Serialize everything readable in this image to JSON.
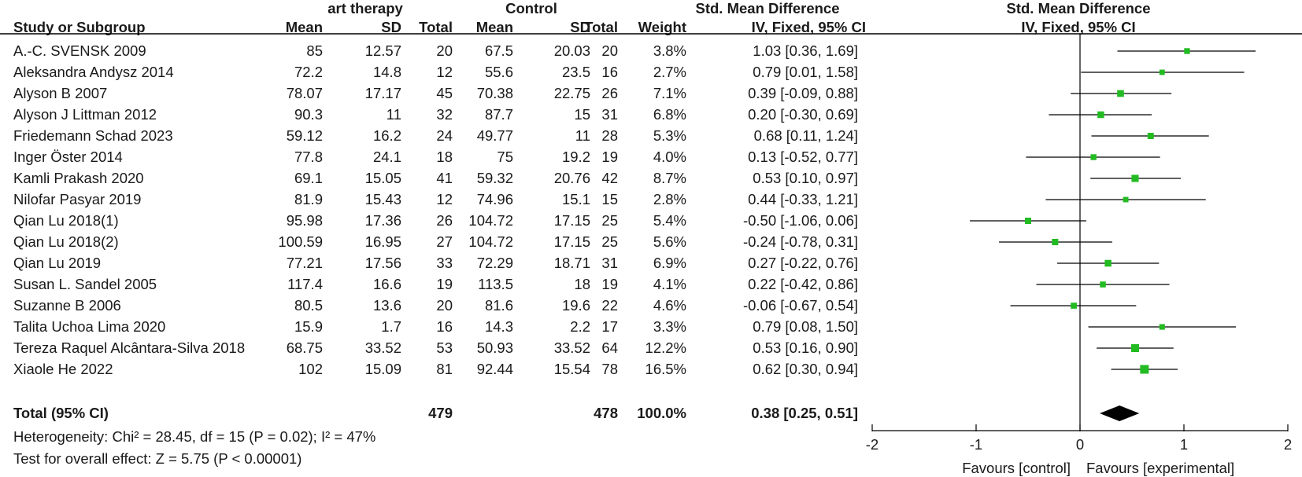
{
  "header": {
    "group1": "art therapy",
    "group2": "Control",
    "effect_header_1": "Std. Mean Difference",
    "effect_header_2": "IV, Fixed, 95% CI",
    "plot_header_1": "Std. Mean Difference",
    "plot_header_2": "IV, Fixed, 95% CI",
    "study_col": "Study or Subgroup",
    "mean1": "Mean",
    "sd1": "SD",
    "total1": "Total",
    "mean2": "Mean",
    "sd2": "SD",
    "total2": "Total",
    "weight": "Weight"
  },
  "studies": [
    {
      "name": "A.-C. SVENSK 2009",
      "m1": "85",
      "sd1": "12.57",
      "n1": "20",
      "m2": "67.5",
      "sd2": "20.03",
      "n2": "20",
      "w": "3.8%",
      "ci": "1.03 [0.36, 1.69]"
    },
    {
      "name": "Aleksandra Andysz 2014",
      "m1": "72.2",
      "sd1": "14.8",
      "n1": "12",
      "m2": "55.6",
      "sd2": "23.5",
      "n2": "16",
      "w": "2.7%",
      "ci": "0.79 [0.01, 1.58]"
    },
    {
      "name": "Alyson B 2007",
      "m1": "78.07",
      "sd1": "17.17",
      "n1": "45",
      "m2": "70.38",
      "sd2": "22.75",
      "n2": "26",
      "w": "7.1%",
      "ci": "0.39 [-0.09, 0.88]"
    },
    {
      "name": "Alyson J Littman 2012",
      "m1": "90.3",
      "sd1": "11",
      "n1": "32",
      "m2": "87.7",
      "sd2": "15",
      "n2": "31",
      "w": "6.8%",
      "ci": "0.20 [-0.30, 0.69]"
    },
    {
      "name": "Friedemann Schad 2023",
      "m1": "59.12",
      "sd1": "16.2",
      "n1": "24",
      "m2": "49.77",
      "sd2": "11",
      "n2": "28",
      "w": "5.3%",
      "ci": "0.68 [0.11, 1.24]"
    },
    {
      "name": "Inger Öster 2014",
      "m1": "77.8",
      "sd1": "24.1",
      "n1": "18",
      "m2": "75",
      "sd2": "19.2",
      "n2": "19",
      "w": "4.0%",
      "ci": "0.13 [-0.52, 0.77]"
    },
    {
      "name": "Kamli Prakash 2020",
      "m1": "69.1",
      "sd1": "15.05",
      "n1": "41",
      "m2": "59.32",
      "sd2": "20.76",
      "n2": "42",
      "w": "8.7%",
      "ci": "0.53 [0.10, 0.97]"
    },
    {
      "name": "Nilofar Pasyar 2019",
      "m1": "81.9",
      "sd1": "15.43",
      "n1": "12",
      "m2": "74.96",
      "sd2": "15.1",
      "n2": "15",
      "w": "2.8%",
      "ci": "0.44 [-0.33, 1.21]"
    },
    {
      "name": "Qian Lu 2018(1)",
      "m1": "95.98",
      "sd1": "17.36",
      "n1": "26",
      "m2": "104.72",
      "sd2": "17.15",
      "n2": "25",
      "w": "5.4%",
      "ci": "-0.50 [-1.06, 0.06]"
    },
    {
      "name": "Qian Lu 2018(2)",
      "m1": "100.59",
      "sd1": "16.95",
      "n1": "27",
      "m2": "104.72",
      "sd2": "17.15",
      "n2": "25",
      "w": "5.6%",
      "ci": "-0.24 [-0.78, 0.31]"
    },
    {
      "name": "Qian Lu 2019",
      "m1": "77.21",
      "sd1": "17.56",
      "n1": "33",
      "m2": "72.29",
      "sd2": "18.71",
      "n2": "31",
      "w": "6.9%",
      "ci": "0.27 [-0.22, 0.76]"
    },
    {
      "name": "Susan L. Sandel 2005",
      "m1": "117.4",
      "sd1": "16.6",
      "n1": "19",
      "m2": "113.5",
      "sd2": "18",
      "n2": "19",
      "w": "4.1%",
      "ci": "0.22 [-0.42, 0.86]"
    },
    {
      "name": "Suzanne B 2006",
      "m1": "80.5",
      "sd1": "13.6",
      "n1": "20",
      "m2": "81.6",
      "sd2": "19.6",
      "n2": "22",
      "w": "4.6%",
      "ci": "-0.06 [-0.67, 0.54]"
    },
    {
      "name": "Talita Uchoa Lima 2020",
      "m1": "15.9",
      "sd1": "1.7",
      "n1": "16",
      "m2": "14.3",
      "sd2": "2.2",
      "n2": "17",
      "w": "3.3%",
      "ci": "0.79 [0.08, 1.50]"
    },
    {
      "name": "Tereza Raquel Alcântara-Silva 2018",
      "m1": "68.75",
      "sd1": "33.52",
      "n1": "53",
      "m2": "50.93",
      "sd2": "33.52",
      "n2": "64",
      "w": "12.2%",
      "ci": "0.53 [0.16, 0.90]"
    },
    {
      "name": "Xiaole He 2022",
      "m1": "102",
      "sd1": "15.09",
      "n1": "81",
      "m2": "92.44",
      "sd2": "15.54",
      "n2": "78",
      "w": "16.5%",
      "ci": "0.62 [0.30, 0.94]"
    }
  ],
  "total": {
    "label": "Total (95% CI)",
    "n1": "479",
    "n2": "478",
    "w": "100.0%",
    "ci": "0.38 [0.25, 0.51]"
  },
  "footnotes": {
    "heterogeneity": "Heterogeneity: Chi² = 28.45, df = 15 (P = 0.02); I² = 47%",
    "overall": "Test for overall effect: Z = 5.75 (P < 0.00001)"
  },
  "axis": {
    "favours_left": "Favours [control]",
    "favours_right": "Favours [experimental]"
  },
  "colors": {
    "marker": "#22bb22",
    "diamond": "#000000",
    "line": "#000000"
  },
  "chart_data": {
    "type": "forest",
    "xlim": [
      -2,
      2
    ],
    "ticks": [
      -2,
      -1,
      0,
      1,
      2
    ],
    "tick_labels": [
      "-2",
      "-1",
      "0",
      "1",
      "2"
    ],
    "null_line": 0,
    "points": [
      {
        "est": 1.03,
        "lo": 0.36,
        "hi": 1.69,
        "weight": 3.8
      },
      {
        "est": 0.79,
        "lo": 0.01,
        "hi": 1.58,
        "weight": 2.7
      },
      {
        "est": 0.39,
        "lo": -0.09,
        "hi": 0.88,
        "weight": 7.1
      },
      {
        "est": 0.2,
        "lo": -0.3,
        "hi": 0.69,
        "weight": 6.8
      },
      {
        "est": 0.68,
        "lo": 0.11,
        "hi": 1.24,
        "weight": 5.3
      },
      {
        "est": 0.13,
        "lo": -0.52,
        "hi": 0.77,
        "weight": 4.0
      },
      {
        "est": 0.53,
        "lo": 0.1,
        "hi": 0.97,
        "weight": 8.7
      },
      {
        "est": 0.44,
        "lo": -0.33,
        "hi": 1.21,
        "weight": 2.8
      },
      {
        "est": -0.5,
        "lo": -1.06,
        "hi": 0.06,
        "weight": 5.4
      },
      {
        "est": -0.24,
        "lo": -0.78,
        "hi": 0.31,
        "weight": 5.6
      },
      {
        "est": 0.27,
        "lo": -0.22,
        "hi": 0.76,
        "weight": 6.9
      },
      {
        "est": 0.22,
        "lo": -0.42,
        "hi": 0.86,
        "weight": 4.1
      },
      {
        "est": -0.06,
        "lo": -0.67,
        "hi": 0.54,
        "weight": 4.6
      },
      {
        "est": 0.79,
        "lo": 0.08,
        "hi": 1.5,
        "weight": 3.3
      },
      {
        "est": 0.53,
        "lo": 0.16,
        "hi": 0.9,
        "weight": 12.2
      },
      {
        "est": 0.62,
        "lo": 0.3,
        "hi": 0.94,
        "weight": 16.5
      }
    ],
    "pooled": {
      "est": 0.38,
      "lo": 0.25,
      "hi": 0.51
    }
  }
}
